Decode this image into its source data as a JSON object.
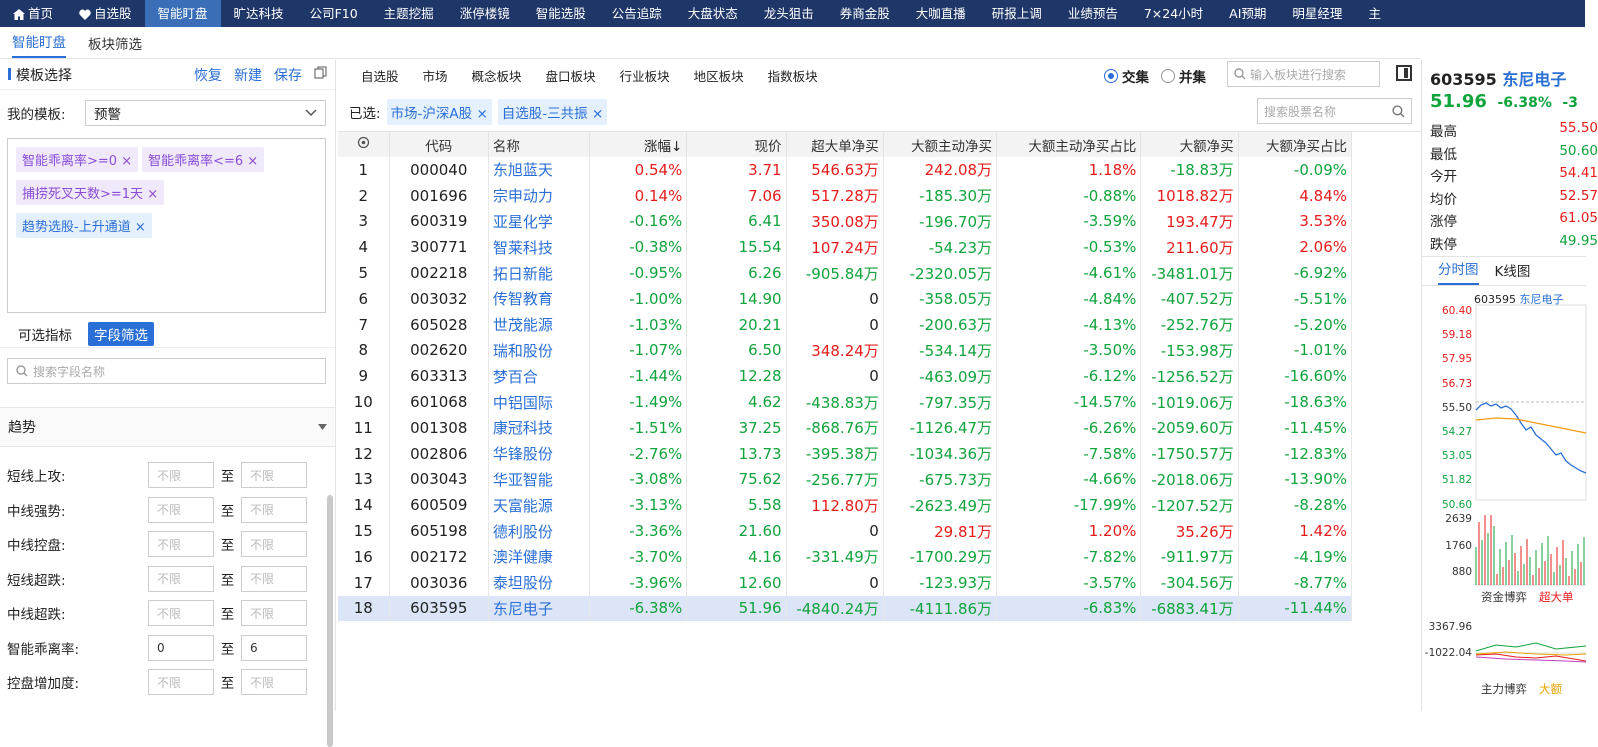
{
  "nav": [
    {
      "label": "首页",
      "icon": "home-icon"
    },
    {
      "label": "自选股",
      "icon": "heart-icon"
    },
    {
      "label": "智能盯盘",
      "active": true
    },
    {
      "label": "旷达科技"
    },
    {
      "label": "公司F10"
    },
    {
      "label": "主题挖掘"
    },
    {
      "label": "涨停楼镜"
    },
    {
      "label": "智能选股"
    },
    {
      "label": "公告追踪"
    },
    {
      "label": "大盘状态"
    },
    {
      "label": "龙头狙击"
    },
    {
      "label": "券商金股"
    },
    {
      "label": "大咖直播"
    },
    {
      "label": "研报上调"
    },
    {
      "label": "业绩预告"
    },
    {
      "label": "7×24小时"
    },
    {
      "label": "AI预期"
    },
    {
      "label": "明星经理"
    },
    {
      "label": "主"
    }
  ],
  "subtabs": [
    "智能盯盘",
    "板块筛选"
  ],
  "left": {
    "title": "模板选择",
    "actions": [
      "恢复",
      "新建",
      "保存"
    ],
    "template_label": "我的模板:",
    "template_value": "预警",
    "tags": [
      {
        "text": "智能乖离率>=0 ×",
        "color": "purple"
      },
      {
        "text": "智能乖离率<=6 ×",
        "color": "purple"
      },
      {
        "text": "捕捞死叉天数>=1天 ×",
        "color": "purple"
      },
      {
        "text": "趋势选股-上升通道 ×",
        "color": "blue"
      }
    ],
    "tab_indicators": "可选指标",
    "tab_fields": "字段筛选",
    "search_placeholder": "搜索字段名称",
    "section": "趋势",
    "to": "至",
    "fields": [
      {
        "label": "短线上攻:",
        "min": "不限",
        "max": "不限"
      },
      {
        "label": "中线强势:",
        "min": "不限",
        "max": "不限"
      },
      {
        "label": "中线控盘:",
        "min": "不限",
        "max": "不限"
      },
      {
        "label": "短线超跌:",
        "min": "不限",
        "max": "不限"
      },
      {
        "label": "中线超跌:",
        "min": "不限",
        "max": "不限"
      },
      {
        "label": "智能乖离率:",
        "min": "0",
        "max": "6",
        "filled": true
      },
      {
        "label": "控盘增加度:",
        "min": "不限",
        "max": "不限"
      }
    ]
  },
  "filterbar": {
    "tabs": [
      "自选股",
      "市场",
      "概念板块",
      "盘口板块",
      "行业板块",
      "地区板块",
      "指数板块"
    ],
    "intersection": "交集",
    "union": "并集",
    "plate_placeholder": "输入板块进行搜索"
  },
  "selected": {
    "label": "已选:",
    "tags": [
      "市场-沪深A股 ×",
      "自选股-三共振 ×"
    ],
    "stock_placeholder": "搜索股票名称"
  },
  "table": {
    "columns": [
      "",
      "代码",
      "名称",
      "涨幅↓",
      "现价",
      "超大单净买",
      "大额主动净买",
      "大额主动净买占比",
      "大额净买",
      "大额净买占比"
    ],
    "rows": [
      [
        "1",
        "000040",
        "东旭蓝天",
        "0.54%",
        "3.71",
        "546.63万",
        "242.08万",
        "1.18%",
        "-18.83万",
        "-0.09%"
      ],
      [
        "2",
        "001696",
        "宗申动力",
        "0.14%",
        "7.06",
        "517.28万",
        "-185.30万",
        "-0.88%",
        "1018.82万",
        "4.84%"
      ],
      [
        "3",
        "600319",
        "亚星化学",
        "-0.16%",
        "6.41",
        "350.08万",
        "-196.70万",
        "-3.59%",
        "193.47万",
        "3.53%"
      ],
      [
        "4",
        "300771",
        "智莱科技",
        "-0.38%",
        "15.54",
        "107.24万",
        "-54.23万",
        "-0.53%",
        "211.60万",
        "2.06%"
      ],
      [
        "5",
        "002218",
        "拓日新能",
        "-0.95%",
        "6.26",
        "-905.84万",
        "-2320.05万",
        "-4.61%",
        "-3481.01万",
        "-6.92%"
      ],
      [
        "6",
        "003032",
        "传智教育",
        "-1.00%",
        "14.90",
        "0",
        "-358.05万",
        "-4.84%",
        "-407.52万",
        "-5.51%"
      ],
      [
        "7",
        "605028",
        "世茂能源",
        "-1.03%",
        "20.21",
        "0",
        "-200.63万",
        "-4.13%",
        "-252.76万",
        "-5.20%"
      ],
      [
        "8",
        "002620",
        "瑞和股份",
        "-1.07%",
        "6.50",
        "348.24万",
        "-534.14万",
        "-3.50%",
        "-153.98万",
        "-1.01%"
      ],
      [
        "9",
        "603313",
        "梦百合",
        "-1.44%",
        "12.28",
        "0",
        "-463.09万",
        "-6.12%",
        "-1256.52万",
        "-16.60%"
      ],
      [
        "10",
        "601068",
        "中铝国际",
        "-1.49%",
        "4.62",
        "-438.83万",
        "-797.35万",
        "-14.57%",
        "-1019.06万",
        "-18.63%"
      ],
      [
        "11",
        "001308",
        "康冠科技",
        "-1.51%",
        "37.25",
        "-868.76万",
        "-1126.47万",
        "-6.26%",
        "-2059.60万",
        "-11.45%"
      ],
      [
        "12",
        "002806",
        "华锋股份",
        "-2.76%",
        "13.73",
        "-395.38万",
        "-1034.36万",
        "-7.58%",
        "-1750.57万",
        "-12.83%"
      ],
      [
        "13",
        "003043",
        "华亚智能",
        "-3.08%",
        "75.62",
        "-256.77万",
        "-675.73万",
        "-4.66%",
        "-2018.06万",
        "-13.90%"
      ],
      [
        "14",
        "600509",
        "天富能源",
        "-3.13%",
        "5.58",
        "112.80万",
        "-2623.49万",
        "-17.99%",
        "-1207.52万",
        "-8.28%"
      ],
      [
        "15",
        "605198",
        "德利股份",
        "-3.36%",
        "21.60",
        "0",
        "29.81万",
        "1.20%",
        "35.26万",
        "1.42%"
      ],
      [
        "16",
        "002172",
        "澳洋健康",
        "-3.70%",
        "4.16",
        "-331.49万",
        "-1700.29万",
        "-7.82%",
        "-911.97万",
        "-4.19%"
      ],
      [
        "17",
        "003036",
        "泰坦股份",
        "-3.96%",
        "12.60",
        "0",
        "-123.93万",
        "-3.57%",
        "-304.56万",
        "-8.77%"
      ],
      [
        "18",
        "603595",
        "东尼电子",
        "-6.38%",
        "51.96",
        "-4840.24万",
        "-4111.86万",
        "-6.83%",
        "-6883.41万",
        "-11.44%"
      ]
    ],
    "highlight_row": 17
  },
  "right": {
    "code": "603595",
    "name": "东尼电子",
    "price": "51.96",
    "change": "-6.38%",
    "change2": "-3",
    "quotes": [
      {
        "label": "最高",
        "value": "55.50",
        "color": "up"
      },
      {
        "label": "最低",
        "value": "50.60",
        "color": "dn"
      },
      {
        "label": "今开",
        "value": "54.41",
        "color": "up"
      },
      {
        "label": "均价",
        "value": "52.57",
        "color": "up"
      },
      {
        "label": "涨停",
        "value": "61.05",
        "color": "up"
      },
      {
        "label": "跌停",
        "value": "49.95",
        "color": "dn"
      }
    ],
    "tabs": [
      "分时图",
      "K线图"
    ],
    "chart_title_code": "603595",
    "chart_title_name": "东尼电子",
    "y_price": [
      "60.40",
      "59.18",
      "57.95",
      "56.73",
      "55.50",
      "54.27",
      "53.05",
      "51.82",
      "50.60"
    ],
    "y_vol": [
      "2639",
      "1760",
      "880"
    ],
    "y_flow": [
      "3367.96",
      "-1022.04"
    ],
    "label_fund": "资金博弈",
    "label_super": "超大单",
    "label_main": "主力博弈",
    "label_big": "大额"
  },
  "colors": {
    "up": "#e61c1c",
    "down": "#11a33c",
    "accent": "#2a6fd6",
    "nav": "#1f3768"
  }
}
